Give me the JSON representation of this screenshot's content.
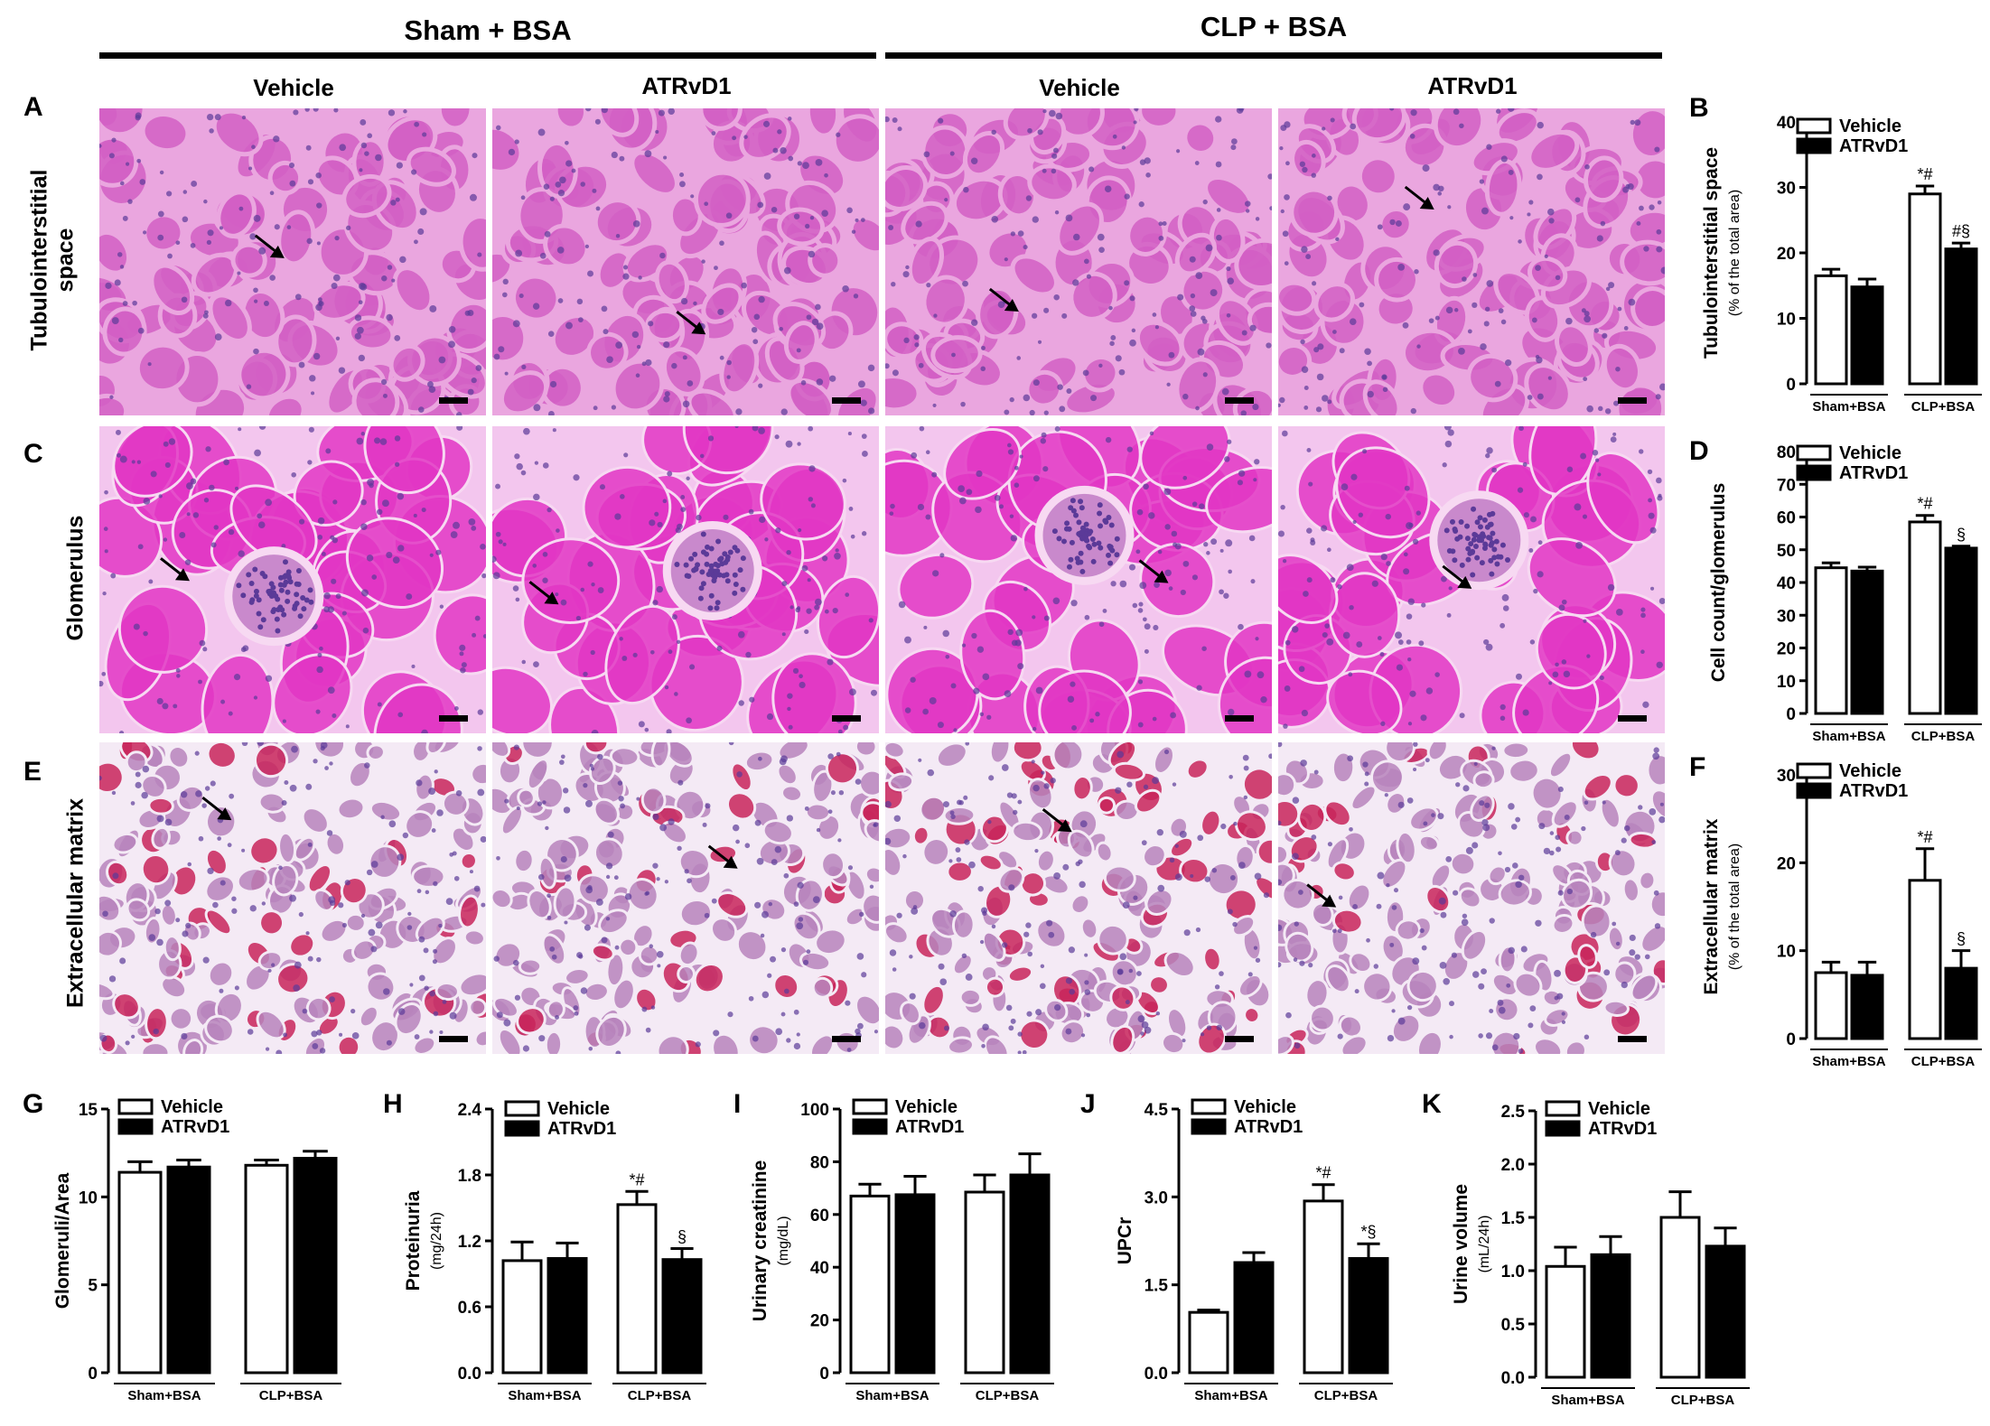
{
  "header": {
    "group_left": "Sham + BSA",
    "group_right": "CLP + BSA",
    "columns": [
      "Vehicle",
      "ATRvD1",
      "Vehicle",
      "ATRvD1"
    ]
  },
  "rows": [
    {
      "letter": "A",
      "label_lines": [
        "Tubulointerstitial",
        "space"
      ]
    },
    {
      "letter": "C",
      "label_lines": [
        "Glomerulus"
      ]
    },
    {
      "letter": "E",
      "label_lines": [
        "Extracellular matrix"
      ]
    }
  ],
  "colors": {
    "he_bg": "#eaa6df",
    "he_tissue": "#d25fc4",
    "he_dark": "#b83bb0",
    "he_bg_c": "#f3c6ee",
    "he_tissue_c": "#e236c4",
    "sirius_bg": "#f4eaf5",
    "sirius_tissue": "#b784bc",
    "sirius_red": "#c8245a",
    "nucleus": "#5b3a98",
    "bar_open": "#ffffff",
    "bar_filled": "#000000"
  },
  "chart_data": [
    {
      "id": "B",
      "letter": "B",
      "type": "bar",
      "ylabel": "Tubulointerstitial space",
      "ylabel2": "(% of the total area)",
      "ylim": [
        0,
        40
      ],
      "yticks": [
        "0",
        "10",
        "20",
        "30",
        "40"
      ],
      "groups": [
        "Sham+BSA",
        "CLP+BSA"
      ],
      "series": [
        {
          "name": "Vehicle",
          "fill": "open",
          "values": [
            16.5,
            29.0
          ],
          "errors": [
            1.0,
            1.2
          ]
        },
        {
          "name": "ATRvD1",
          "fill": "filled",
          "values": [
            14.8,
            20.6
          ],
          "errors": [
            1.2,
            0.9
          ]
        }
      ],
      "annotations": [
        {
          "series": 0,
          "group": 1,
          "text": "*#"
        },
        {
          "series": 1,
          "group": 1,
          "text": "#§"
        }
      ]
    },
    {
      "id": "D",
      "letter": "D",
      "type": "bar",
      "ylabel": "Cell count/glomerulus",
      "ylabel2": "",
      "ylim": [
        0,
        80
      ],
      "yticks": [
        "0",
        "10",
        "20",
        "30",
        "40",
        "50",
        "60",
        "70",
        "80"
      ],
      "groups": [
        "Sham+BSA",
        "CLP+BSA"
      ],
      "series": [
        {
          "name": "Vehicle",
          "fill": "open",
          "values": [
            44.5,
            58.5
          ],
          "errors": [
            1.5,
            2.0
          ]
        },
        {
          "name": "ATRvD1",
          "fill": "filled",
          "values": [
            43.5,
            50.5
          ],
          "errors": [
            1.2,
            0.6
          ]
        }
      ],
      "annotations": [
        {
          "series": 0,
          "group": 1,
          "text": "*#"
        },
        {
          "series": 1,
          "group": 1,
          "text": "§"
        }
      ]
    },
    {
      "id": "F",
      "letter": "F",
      "type": "bar",
      "ylabel": "Extracellular matrix",
      "ylabel2": "(% of the total area)",
      "ylim": [
        0,
        30
      ],
      "yticks": [
        "0",
        "10",
        "20",
        "30"
      ],
      "groups": [
        "Sham+BSA",
        "CLP+BSA"
      ],
      "series": [
        {
          "name": "Vehicle",
          "fill": "open",
          "values": [
            7.5,
            18.0
          ],
          "errors": [
            1.2,
            3.6
          ]
        },
        {
          "name": "ATRvD1",
          "fill": "filled",
          "values": [
            7.2,
            8.0
          ],
          "errors": [
            1.5,
            2.0
          ]
        }
      ],
      "annotations": [
        {
          "series": 0,
          "group": 1,
          "text": "*#"
        },
        {
          "series": 1,
          "group": 1,
          "text": "§"
        }
      ]
    },
    {
      "id": "G",
      "letter": "G",
      "type": "bar",
      "ylabel": "Glomeruli/Area",
      "ylabel2": "",
      "ylim": [
        0,
        15
      ],
      "yticks": [
        "0",
        "5",
        "10",
        "15"
      ],
      "groups": [
        "Sham+BSA",
        "CLP+BSA"
      ],
      "series": [
        {
          "name": "Vehicle",
          "fill": "open",
          "values": [
            11.4,
            11.8
          ],
          "errors": [
            0.6,
            0.3
          ]
        },
        {
          "name": "ATRvD1",
          "fill": "filled",
          "values": [
            11.7,
            12.2
          ],
          "errors": [
            0.4,
            0.4
          ]
        }
      ],
      "annotations": []
    },
    {
      "id": "H",
      "letter": "H",
      "type": "bar",
      "ylabel": "Proteinuria",
      "ylabel2": "(mg/24h)",
      "ylim": [
        0,
        2.4
      ],
      "yticks": [
        "0.0",
        "0.6",
        "1.2",
        "1.8",
        "2.4"
      ],
      "groups": [
        "Sham+BSA",
        "CLP+BSA"
      ],
      "series": [
        {
          "name": "Vehicle",
          "fill": "open",
          "values": [
            1.02,
            1.53
          ],
          "errors": [
            0.17,
            0.12
          ]
        },
        {
          "name": "ATRvD1",
          "fill": "filled",
          "values": [
            1.04,
            1.03
          ],
          "errors": [
            0.14,
            0.1
          ]
        }
      ],
      "annotations": [
        {
          "series": 0,
          "group": 1,
          "text": "*#"
        },
        {
          "series": 1,
          "group": 1,
          "text": "§"
        }
      ]
    },
    {
      "id": "I",
      "letter": "I",
      "type": "bar",
      "ylabel": "Urinary creatinine",
      "ylabel2": "(mg/dL)",
      "ylim": [
        0,
        100
      ],
      "yticks": [
        "0",
        "20",
        "40",
        "60",
        "80",
        "100"
      ],
      "groups": [
        "Sham+BSA",
        "CLP+BSA"
      ],
      "series": [
        {
          "name": "Vehicle",
          "fill": "open",
          "values": [
            67,
            68.5
          ],
          "errors": [
            4.5,
            6.5
          ]
        },
        {
          "name": "ATRvD1",
          "fill": "filled",
          "values": [
            67.5,
            75
          ],
          "errors": [
            7,
            8
          ]
        }
      ],
      "annotations": []
    },
    {
      "id": "J",
      "letter": "J",
      "type": "bar",
      "ylabel": "UPCr",
      "ylabel2": "",
      "ylim": [
        0,
        4.5
      ],
      "yticks": [
        "0.0",
        "1.5",
        "3.0",
        "4.5"
      ],
      "groups": [
        "Sham+BSA",
        "CLP+BSA"
      ],
      "series": [
        {
          "name": "Vehicle",
          "fill": "open",
          "values": [
            1.03,
            2.93
          ],
          "errors": [
            0.04,
            0.28
          ]
        },
        {
          "name": "ATRvD1",
          "fill": "filled",
          "values": [
            1.88,
            1.95
          ],
          "errors": [
            0.17,
            0.25
          ]
        }
      ],
      "annotations": [
        {
          "series": 0,
          "group": 1,
          "text": "*#"
        },
        {
          "series": 1,
          "group": 1,
          "text": "*§"
        }
      ]
    },
    {
      "id": "K",
      "letter": "K",
      "type": "bar",
      "ylabel": "Urine volume",
      "ylabel2": "(mL/24h)",
      "ylim": [
        0,
        2.5
      ],
      "yticks": [
        "0.0",
        "0.5",
        "1.0",
        "1.5",
        "2.0",
        "2.5"
      ],
      "groups": [
        "Sham+BSA",
        "CLP+BSA"
      ],
      "series": [
        {
          "name": "Vehicle",
          "fill": "open",
          "values": [
            1.04,
            1.5
          ],
          "errors": [
            0.18,
            0.24
          ]
        },
        {
          "name": "ATRvD1",
          "fill": "filled",
          "values": [
            1.15,
            1.23
          ],
          "errors": [
            0.17,
            0.17
          ]
        }
      ],
      "annotations": []
    }
  ]
}
